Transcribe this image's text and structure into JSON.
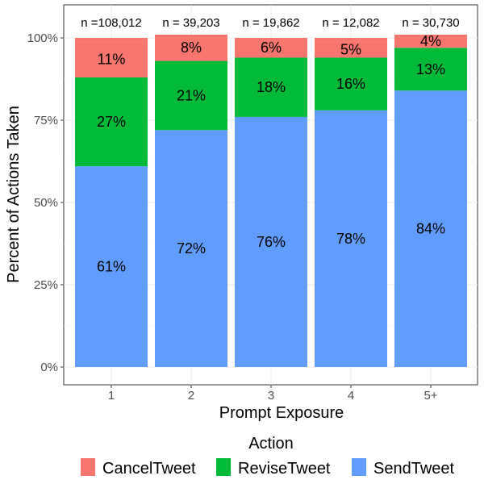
{
  "chart_data": {
    "type": "bar",
    "stacked": true,
    "xlabel": "Prompt Exposure",
    "ylabel": "Percent of Actions Taken",
    "categories": [
      "1",
      "2",
      "3",
      "4",
      "5+"
    ],
    "n_labels": [
      "n =108,012",
      "n = 39,203",
      "n = 19,862",
      "n = 12,082",
      "n = 30,730"
    ],
    "ylim": [
      0,
      100
    ],
    "yticks": [
      0,
      25,
      50,
      75,
      100
    ],
    "ytick_labels": [
      "0%",
      "25%",
      "50%",
      "75%",
      "100%"
    ],
    "grid": true,
    "legend": {
      "title": "Action",
      "position": "bottom"
    },
    "series": [
      {
        "name": "SendTweet",
        "color": "#619CFF",
        "values": [
          61,
          72,
          76,
          78,
          84
        ],
        "labels": [
          "61%",
          "72%",
          "76%",
          "78%",
          "84%"
        ]
      },
      {
        "name": "ReviseTweet",
        "color": "#00BA38",
        "values": [
          27,
          21,
          18,
          16,
          13
        ],
        "labels": [
          "27%",
          "21%",
          "18%",
          "16%",
          "13%"
        ]
      },
      {
        "name": "CancelTweet",
        "color": "#F8766D",
        "values": [
          11,
          8,
          6,
          5,
          4
        ],
        "labels": [
          "11%",
          "8%",
          "6%",
          "5%",
          "4%"
        ]
      }
    ],
    "legend_order": [
      "CancelTweet",
      "ReviseTweet",
      "SendTweet"
    ]
  }
}
